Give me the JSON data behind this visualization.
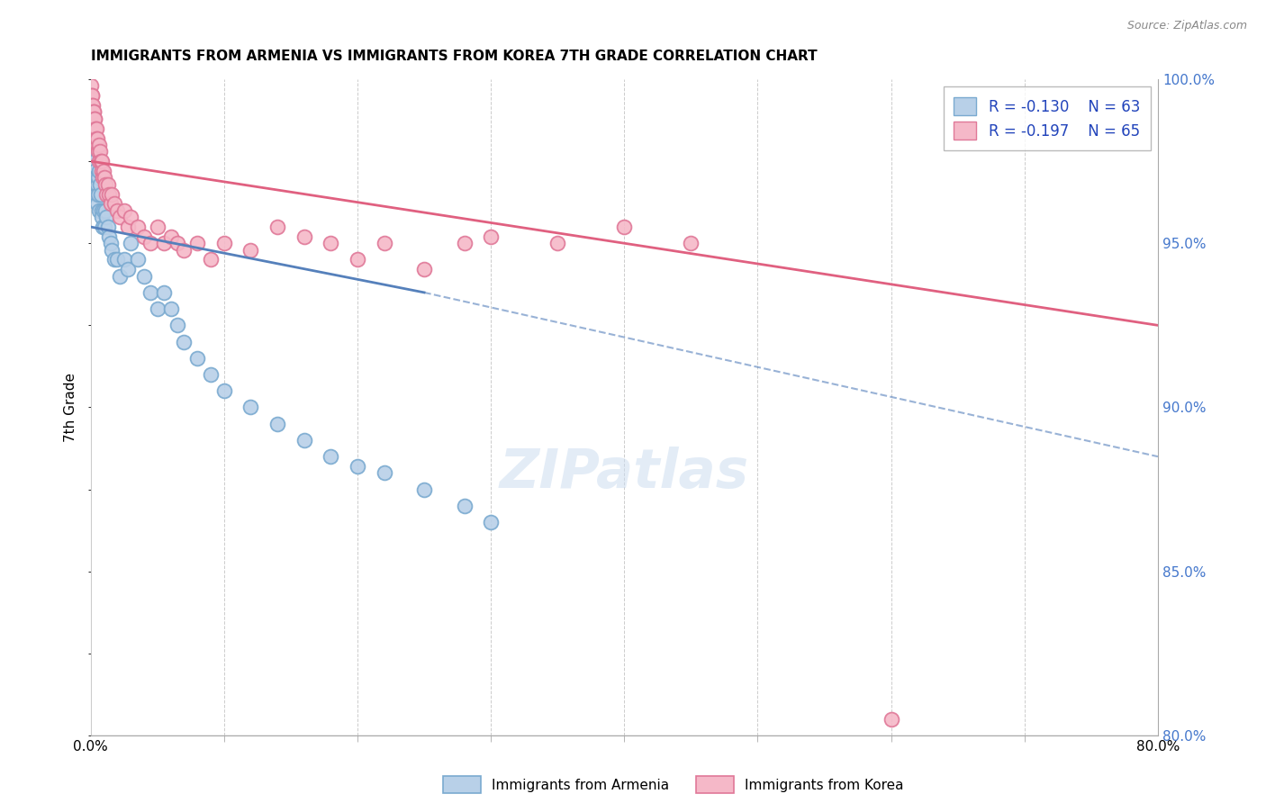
{
  "title": "IMMIGRANTS FROM ARMENIA VS IMMIGRANTS FROM KOREA 7TH GRADE CORRELATION CHART",
  "source": "Source: ZipAtlas.com",
  "ylabel": "7th Grade",
  "xlabel_legend1": "Immigrants from Armenia",
  "xlabel_legend2": "Immigrants from Korea",
  "r_armenia": -0.13,
  "n_armenia": 63,
  "r_korea": -0.197,
  "n_korea": 65,
  "xmin": 0.0,
  "xmax": 80.0,
  "ymin": 80.0,
  "ymax": 100.0,
  "color_armenia_fill": "#b8d0e8",
  "color_armenia_edge": "#7aaad0",
  "color_korea_fill": "#f5b8c8",
  "color_korea_edge": "#e07898",
  "color_armenia_line": "#5580bb",
  "color_korea_line": "#e06080",
  "color_right_axis": "#4477cc",
  "watermark": "ZIPatlas",
  "armenia_x": [
    0.05,
    0.08,
    0.1,
    0.1,
    0.12,
    0.15,
    0.18,
    0.2,
    0.22,
    0.25,
    0.28,
    0.3,
    0.32,
    0.35,
    0.38,
    0.4,
    0.42,
    0.45,
    0.48,
    0.5,
    0.55,
    0.58,
    0.6,
    0.65,
    0.7,
    0.75,
    0.8,
    0.85,
    0.9,
    0.95,
    1.0,
    1.1,
    1.2,
    1.3,
    1.4,
    1.5,
    1.6,
    1.8,
    2.0,
    2.2,
    2.5,
    2.8,
    3.0,
    3.5,
    4.0,
    4.5,
    5.0,
    5.5,
    6.0,
    6.5,
    7.0,
    8.0,
    9.0,
    10.0,
    12.0,
    14.0,
    16.0,
    18.0,
    20.0,
    22.0,
    25.0,
    28.0,
    30.0
  ],
  "armenia_y": [
    99.5,
    99.2,
    99.0,
    98.8,
    98.5,
    98.0,
    98.2,
    97.8,
    97.5,
    98.0,
    97.0,
    97.5,
    97.2,
    96.8,
    97.0,
    96.5,
    97.0,
    96.5,
    96.2,
    96.8,
    97.0,
    96.5,
    97.2,
    96.0,
    96.8,
    96.5,
    96.0,
    95.8,
    95.5,
    96.0,
    95.5,
    96.0,
    95.8,
    95.5,
    95.2,
    95.0,
    94.8,
    94.5,
    94.5,
    94.0,
    94.5,
    94.2,
    95.0,
    94.5,
    94.0,
    93.5,
    93.0,
    93.5,
    93.0,
    92.5,
    92.0,
    91.5,
    91.0,
    90.5,
    90.0,
    89.5,
    89.0,
    88.5,
    88.2,
    88.0,
    87.5,
    87.0,
    86.5
  ],
  "korea_x": [
    0.05,
    0.08,
    0.1,
    0.12,
    0.15,
    0.18,
    0.2,
    0.22,
    0.25,
    0.28,
    0.3,
    0.32,
    0.35,
    0.38,
    0.4,
    0.42,
    0.45,
    0.48,
    0.5,
    0.55,
    0.6,
    0.65,
    0.7,
    0.75,
    0.8,
    0.85,
    0.9,
    0.95,
    1.0,
    1.1,
    1.2,
    1.3,
    1.4,
    1.5,
    1.6,
    1.8,
    2.0,
    2.2,
    2.5,
    2.8,
    3.0,
    3.5,
    4.0,
    4.5,
    5.0,
    5.5,
    6.0,
    6.5,
    7.0,
    8.0,
    9.0,
    10.0,
    12.0,
    14.0,
    16.0,
    18.0,
    20.0,
    22.0,
    25.0,
    28.0,
    30.0,
    35.0,
    40.0,
    45.0,
    60.0
  ],
  "korea_y": [
    99.8,
    99.5,
    99.5,
    99.2,
    99.0,
    99.2,
    99.0,
    98.8,
    99.0,
    98.8,
    98.5,
    98.8,
    98.5,
    98.2,
    98.5,
    98.0,
    98.2,
    98.0,
    98.2,
    97.8,
    98.0,
    97.5,
    97.8,
    97.5,
    97.2,
    97.5,
    97.0,
    97.2,
    97.0,
    96.8,
    96.5,
    96.8,
    96.5,
    96.2,
    96.5,
    96.2,
    96.0,
    95.8,
    96.0,
    95.5,
    95.8,
    95.5,
    95.2,
    95.0,
    95.5,
    95.0,
    95.2,
    95.0,
    94.8,
    95.0,
    94.5,
    95.0,
    94.8,
    95.5,
    95.2,
    95.0,
    94.5,
    95.0,
    94.2,
    95.0,
    95.2,
    95.0,
    95.5,
    95.0,
    80.5
  ],
  "trendline_armenia_x0": 0.0,
  "trendline_armenia_y0": 95.5,
  "trendline_armenia_x1": 25.0,
  "trendline_armenia_y1": 93.5,
  "trendline_armenia_dash_x1": 80.0,
  "trendline_armenia_dash_y1": 88.5,
  "trendline_korea_x0": 0.0,
  "trendline_korea_y0": 97.5,
  "trendline_korea_x1": 80.0,
  "trendline_korea_y1": 92.5
}
